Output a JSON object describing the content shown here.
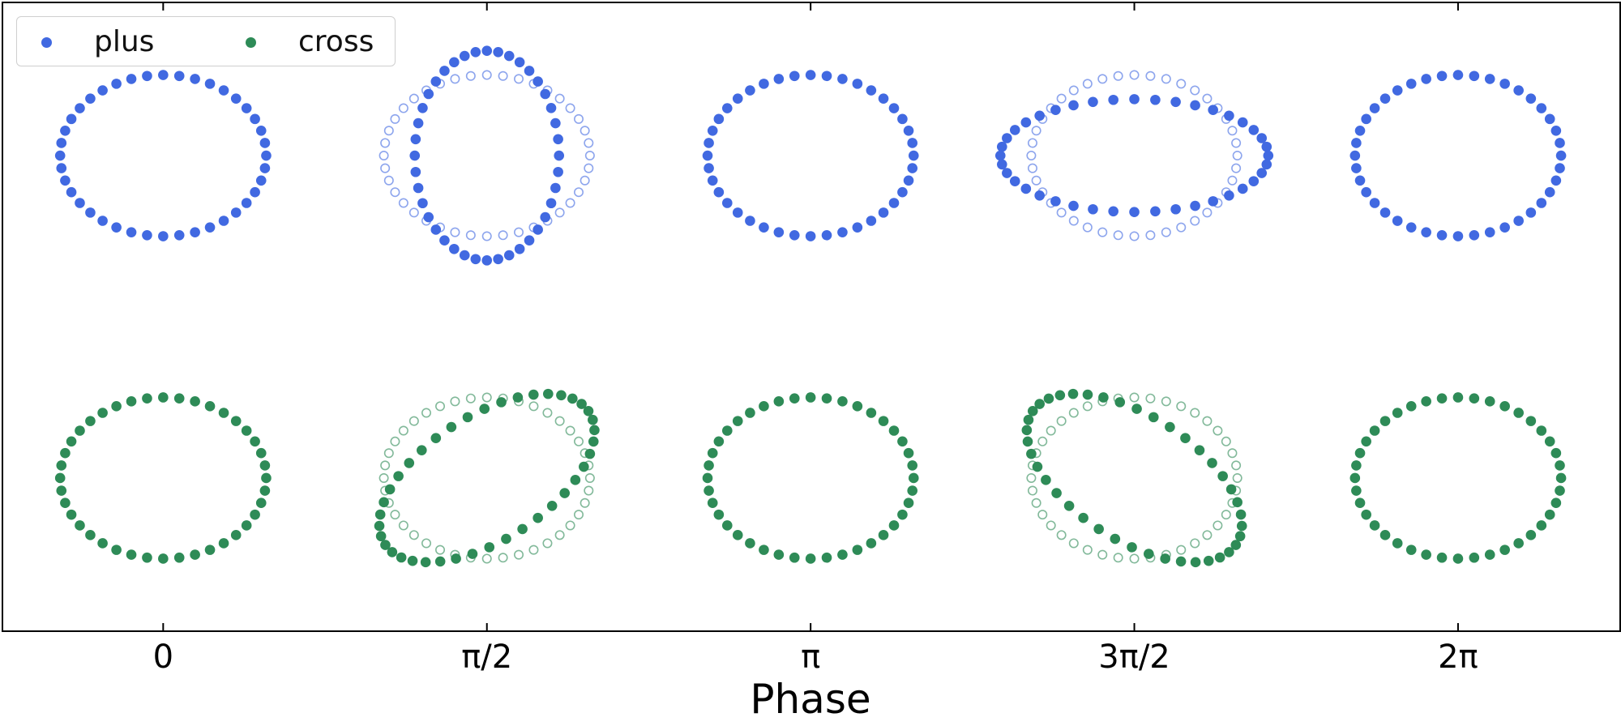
{
  "chart_data": {
    "type": "scatter",
    "title": "",
    "xlabel": "Phase",
    "ylabel": "",
    "x_ticks": [
      {
        "value": 0,
        "label": "0"
      },
      {
        "value": 1.5708,
        "label": "π/2"
      },
      {
        "value": 3.1416,
        "label": "π"
      },
      {
        "value": 4.7124,
        "label": "3π/2"
      },
      {
        "value": 6.2832,
        "label": "2π"
      }
    ],
    "xlim": [
      -0.78,
      7.07
    ],
    "ylim": [
      -1.95,
      1.95
    ],
    "grid": false,
    "legend_position": "top-left",
    "legend_columns": 2,
    "ring": {
      "num_points": 40,
      "rest_radius": 0.5,
      "strain_amplitude": 0.3
    },
    "series": [
      {
        "name": "plus",
        "polarization": "plus",
        "color": "#4169e1",
        "row_center_y": 1.0,
        "phases": [
          0,
          1.5708,
          3.1416,
          4.7124,
          6.2832
        ],
        "show_reference_ring_when_deformed": true
      },
      {
        "name": "cross",
        "polarization": "cross",
        "color": "#2e8b57",
        "row_center_y": -1.0,
        "phases": [
          0,
          1.5708,
          3.1416,
          4.7124,
          6.2832
        ],
        "show_reference_ring_when_deformed": true
      }
    ],
    "axis_color": "#000000"
  }
}
